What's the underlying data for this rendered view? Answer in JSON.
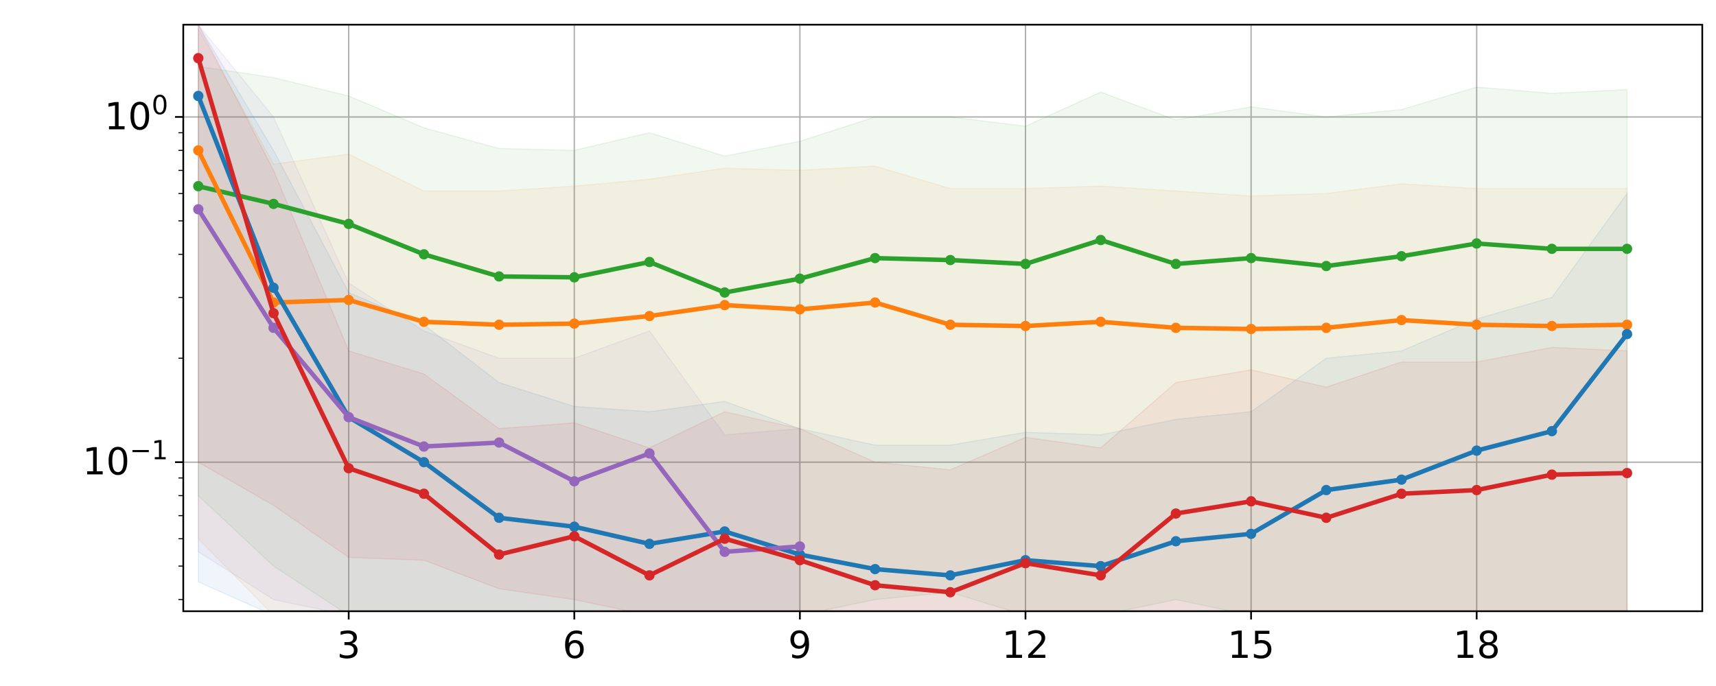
{
  "chart_data": {
    "type": "line",
    "title": "",
    "xlabel": "",
    "ylabel": "",
    "yscale": "log",
    "grid": true,
    "xlim": [
      0.8,
      21.0
    ],
    "ylim": [
      0.037,
      1.85
    ],
    "xticks": [
      3,
      6,
      9,
      12,
      15,
      18
    ],
    "yticks": [
      {
        "value": 1.0,
        "base": "10",
        "exp": "0"
      },
      {
        "value": 0.1,
        "base": "10",
        "exp": "−1"
      }
    ],
    "series": [
      {
        "color": "#2ca02c",
        "x": [
          1,
          2,
          3,
          4,
          5,
          6,
          7,
          8,
          9,
          10,
          11,
          12,
          13,
          14,
          15,
          16,
          17,
          18,
          19,
          20
        ],
        "y": [
          0.63,
          0.56,
          0.49,
          0.4,
          0.345,
          0.343,
          0.38,
          0.31,
          0.34,
          0.39,
          0.385,
          0.375,
          0.44,
          0.375,
          0.39,
          0.37,
          0.395,
          0.43,
          0.415,
          0.415
        ],
        "upper": [
          1.4,
          1.3,
          1.15,
          0.93,
          0.81,
          0.8,
          0.9,
          0.77,
          0.85,
          1.0,
          1.0,
          0.94,
          1.18,
          0.98,
          1.07,
          1.0,
          1.05,
          1.22,
          1.17,
          1.2
        ],
        "lower": [
          0.08,
          0.05,
          0.036,
          0.036,
          0.036,
          0.036,
          0.036,
          0.036,
          0.036,
          0.04,
          0.042,
          0.036,
          0.036,
          0.04,
          0.036,
          0.036,
          0.036,
          0.036,
          0.036,
          0.036
        ]
      },
      {
        "color": "#ff7f0e",
        "x": [
          1,
          2,
          3,
          4,
          5,
          6,
          7,
          8,
          9,
          10,
          11,
          12,
          13,
          14,
          15,
          16,
          17,
          18,
          19,
          20
        ],
        "y": [
          0.8,
          0.29,
          0.295,
          0.255,
          0.25,
          0.252,
          0.265,
          0.285,
          0.277,
          0.29,
          0.25,
          0.248,
          0.255,
          0.245,
          0.243,
          0.245,
          0.258,
          0.25,
          0.248,
          0.25
        ],
        "upper": [
          1.8,
          0.73,
          0.78,
          0.61,
          0.61,
          0.63,
          0.66,
          0.71,
          0.7,
          0.72,
          0.62,
          0.62,
          0.63,
          0.61,
          0.59,
          0.6,
          0.64,
          0.62,
          0.62,
          0.62
        ],
        "lower": [
          0.06,
          0.036,
          0.036,
          0.036,
          0.036,
          0.036,
          0.036,
          0.036,
          0.036,
          0.036,
          0.036,
          0.036,
          0.036,
          0.036,
          0.036,
          0.036,
          0.036,
          0.036,
          0.036,
          0.036
        ]
      },
      {
        "color": "#1f77b4",
        "x": [
          1,
          2,
          3,
          4,
          5,
          6,
          7,
          8,
          9,
          10,
          11,
          12,
          13,
          14,
          15,
          16,
          17,
          18,
          19,
          20
        ],
        "y": [
          1.15,
          0.32,
          0.135,
          0.1,
          0.069,
          0.065,
          0.058,
          0.063,
          0.054,
          0.049,
          0.047,
          0.052,
          0.05,
          0.059,
          0.062,
          0.083,
          0.089,
          0.108,
          0.123,
          0.235
        ],
        "upper": [
          1.85,
          0.8,
          0.31,
          0.25,
          0.17,
          0.145,
          0.14,
          0.15,
          0.125,
          0.112,
          0.112,
          0.122,
          0.12,
          0.133,
          0.14,
          0.2,
          0.21,
          0.26,
          0.3,
          0.6
        ],
        "lower": [
          0.045,
          0.036,
          0.036,
          0.036,
          0.036,
          0.036,
          0.036,
          0.036,
          0.036,
          0.036,
          0.036,
          0.036,
          0.036,
          0.036,
          0.036,
          0.036,
          0.036,
          0.036,
          0.036,
          0.036
        ]
      },
      {
        "color": "#9467bd",
        "x": [
          1,
          2,
          3,
          4,
          5,
          6,
          7,
          8,
          9
        ],
        "y": [
          0.54,
          0.245,
          0.135,
          0.111,
          0.114,
          0.088,
          0.106,
          0.055,
          0.057
        ],
        "upper": [
          1.85,
          1.0,
          0.33,
          0.24,
          0.2,
          0.2,
          0.24,
          0.12,
          0.125
        ],
        "lower": [
          0.055,
          0.04,
          0.036,
          0.036,
          0.036,
          0.036,
          0.036,
          0.036,
          0.036
        ]
      },
      {
        "color": "#d62728",
        "x": [
          1,
          2,
          3,
          4,
          5,
          6,
          7,
          8,
          9,
          10,
          11,
          12,
          13,
          14,
          15,
          16,
          17,
          18,
          19,
          20
        ],
        "y": [
          1.48,
          0.27,
          0.096,
          0.081,
          0.054,
          0.061,
          0.047,
          0.06,
          0.052,
          0.044,
          0.042,
          0.051,
          0.047,
          0.071,
          0.077,
          0.069,
          0.081,
          0.083,
          0.092,
          0.093
        ],
        "upper": [
          1.85,
          0.7,
          0.21,
          0.18,
          0.125,
          0.13,
          0.11,
          0.14,
          0.125,
          0.1,
          0.095,
          0.118,
          0.11,
          0.17,
          0.185,
          0.165,
          0.195,
          0.195,
          0.215,
          0.21
        ],
        "lower": [
          0.1,
          0.075,
          0.053,
          0.052,
          0.043,
          0.04,
          0.036,
          0.036,
          0.036,
          0.036,
          0.036,
          0.036,
          0.036,
          0.036,
          0.036,
          0.036,
          0.036,
          0.036,
          0.036,
          0.036
        ]
      }
    ]
  }
}
